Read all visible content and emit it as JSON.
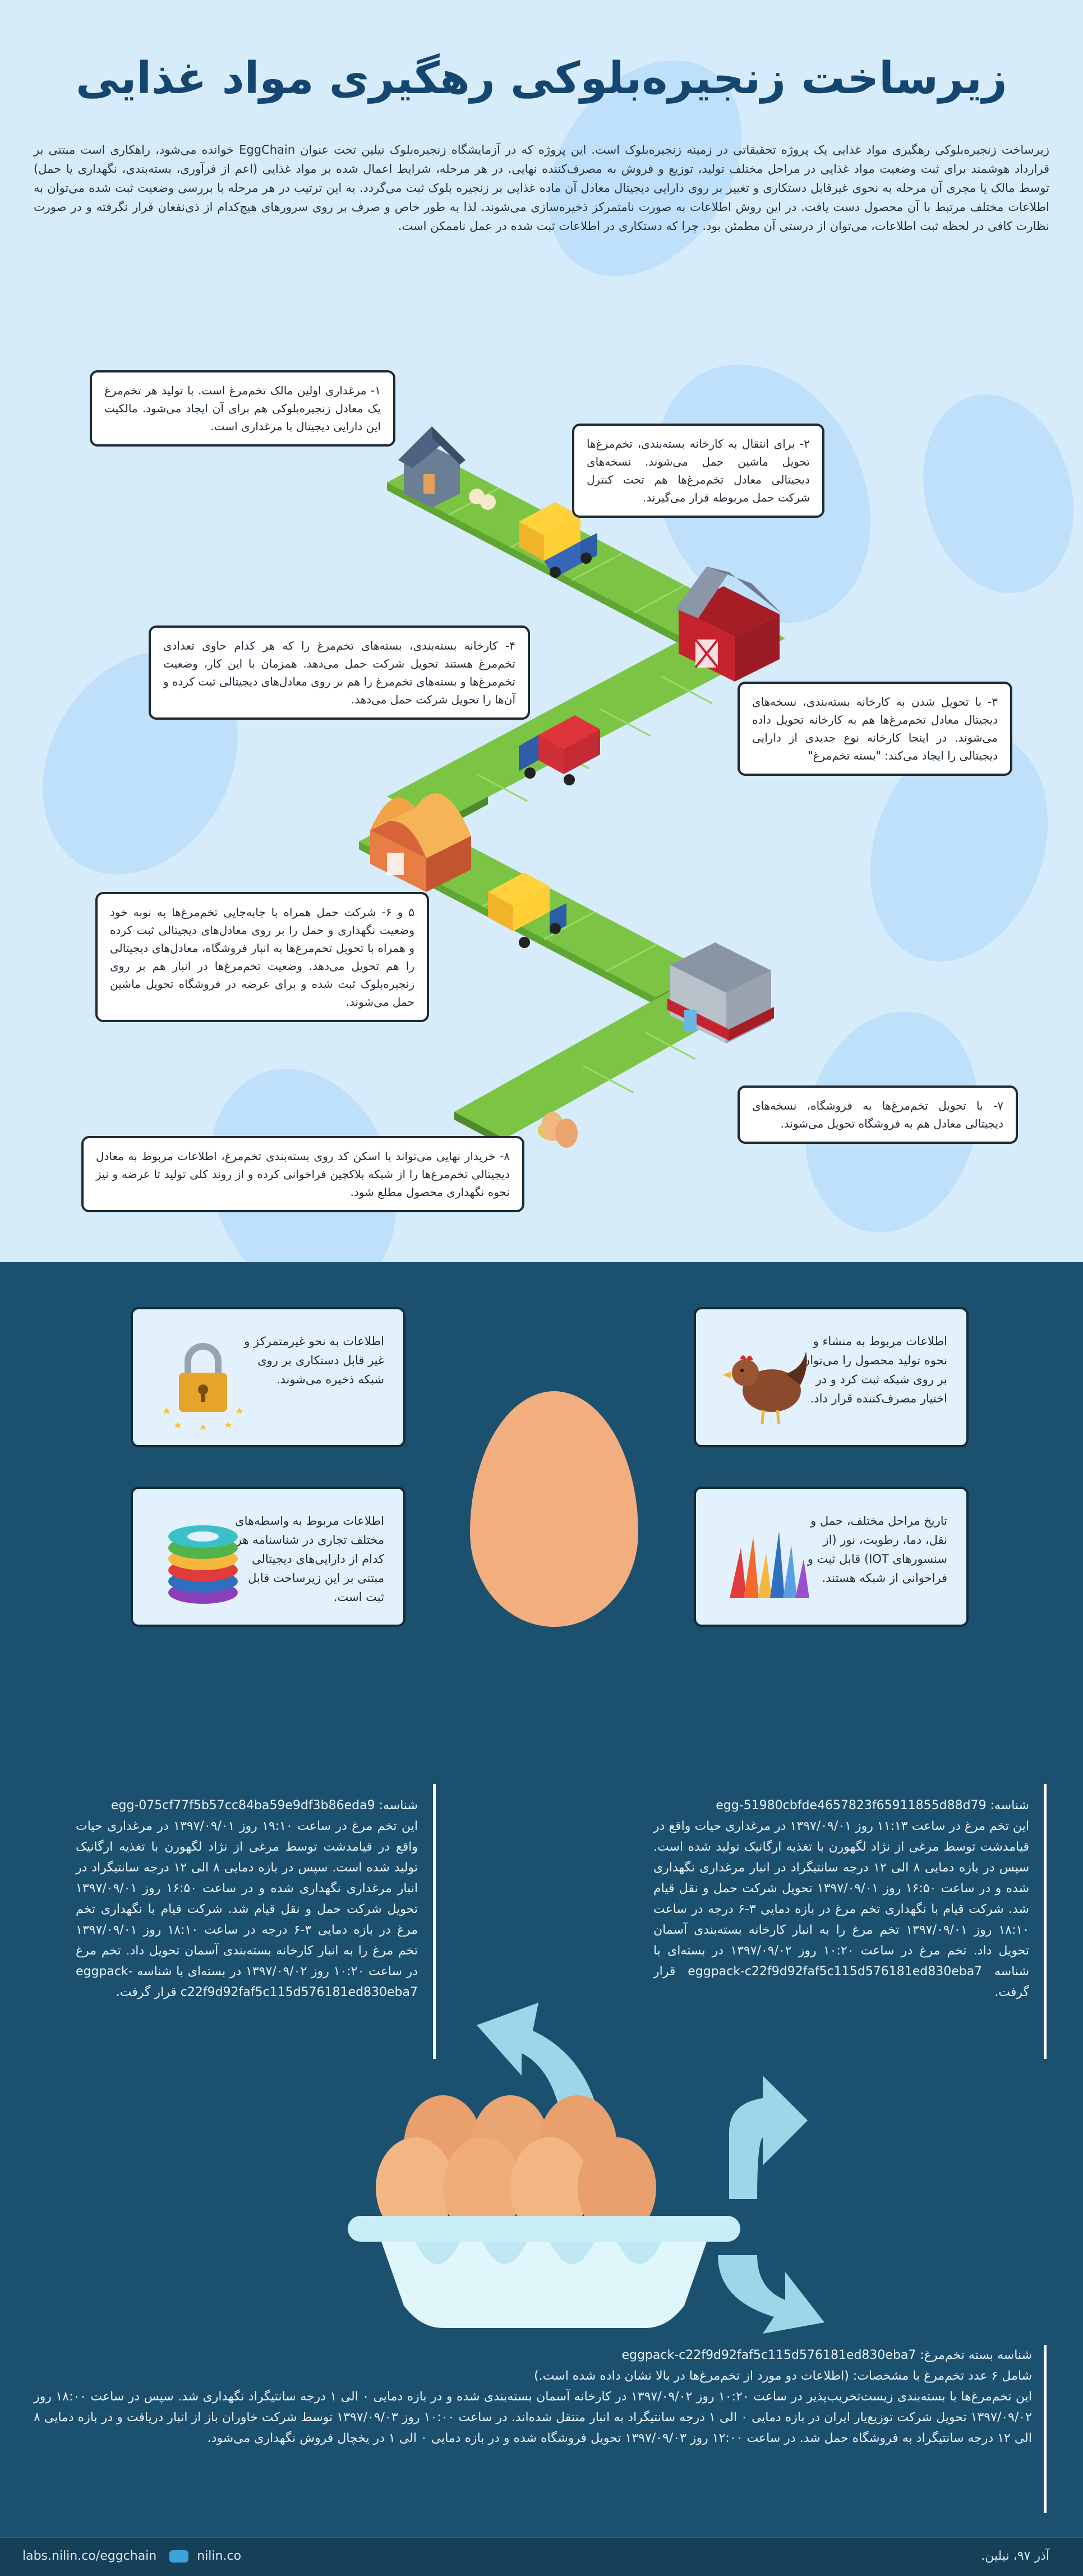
{
  "title": "زیرساخت زنجیره‌بلوکی رهگیری مواد غذایی",
  "intro": "زیرساخت زنجیره‌بلوکی رهگیری مواد غذایی یک پروژه تحقیقاتی در زمینه زنجیره‌بلوک است. این پروژه که در آزمایشگاه زنجیره‌بلوک نیلین تحت عنوان EggChain خوانده می‌شود، راهکاری است مبتنی بر قرارداد هوشمند برای ثبت وضعیت مواد غذایی در مراحل مختلف تولید، توزیع و فروش به مصرف‌کننده نهایی. در هر مرحله، شرایط اعمال شده بر مواد غذایی (اعم از فرآوری، بسته‌بندی، نگهداری یا حمل) توسط مالک یا مجری آن مرحله به نحوی غیرقابل دستکاری و تغییر بر روی دارایی دیجیتال معادل آن ماده غذایی بر زنجیره بلوک ثبت می‌گردد. به این ترتیب در هر مرحله با بررسی وضعیت ثبت شده می‌توان به اطلاعات مختلف مرتبط با آن محصول دست یافت. در این روش اطلاعات به صورت نامتمرکز ذخیره‌سازی می‌شوند. لذا به طور خاص و صرف بر روی سرورهای هیچ‌کدام از ذی‌نفعان قرار نگرفته و در صورت نظارت کافی در لحظه ثبت اطلاعات، می‌توان از درستی آن مطمئن بود. چرا که دستکاری در اطلاعات ثبت شده در عمل ناممکن است.",
  "steps": [
    {
      "id": "s1",
      "text": "۱- مرغداری اولین مالک تخم‌مرغ است. با تولید هر تخم‌مرغ یک معادل زنجیره‌بلوکی هم برای آن ایجاد می‌شود. مالکیت این دارایی دیجیتال با مرغداری است."
    },
    {
      "id": "s2",
      "text": "۲- برای انتقال به کارخانه بسته‌بندی، تخم‌مرغ‌ها تحویل ماشین حمل می‌شوند. نسخه‌های دیجیتالی معادل تخم‌مرغ‌ها هم تحت کنترل شرکت حمل مربوطه قرار می‌گیرند."
    },
    {
      "id": "s3",
      "text": "۳- با تحویل شدن به کارخانه بسته‌بندی، نسخه‌های دیجیتال معادل تخم‌مرغ‌ها هم به کارخانه تحویل داده می‌شوند. در اینجا کارخانه نوع جدیدی از دارایی دیجیتالی را ایجاد می‌کند: \"بسته تخم‌مرغ\""
    },
    {
      "id": "s4",
      "text": "۴- کارخانه بسته‌بندی، بسته‌های تخم‌مرغ را که هر کدام حاوی تعدادی تخم‌مرغ هستند تحویل شرکت حمل می‌دهد. همزمان با این کار، وضعیت تخم‌مرغ‌ها و بسته‌های تخم‌مرغ را هم بر روی معادل‌های دیجیتالی ثبت کرده و آن‌ها را تحویل شرکت حمل می‌دهد."
    },
    {
      "id": "s5",
      "text": "۵ و ۶- شرکت حمل همراه با جابه‌جایی تخم‌مرغ‌ها به نوبه خود وضعیت نگهداری و حمل را بر روی معادل‌های دیجیتالی ثبت کرده و همراه با تحویل تخم‌مرغ‌ها به انبار فروشگاه، معادل‌های دیجیتالی را هم تحویل می‌دهد. وضعیت تخم‌مرغ‌ها در انبار هم بر روی زنجیره‌بلوک ثبت شده و برای عرضه در فروشگاه تحویل ماشین حمل می‌شوند."
    },
    {
      "id": "s7",
      "text": "۷- با تحویل تخم‌مرغ‌ها به فروشگاه، نسخه‌های دیجیتالی معادل هم به فروشگاه تحویل می‌شوند."
    },
    {
      "id": "s8",
      "text": "۸- خریدار نهایی می‌تواند با اسکن کد روی بسته‌بندی تخم‌مرغ، اطلاعات مربوط به معادل دیجیتالی تخم‌مرغ‌ها را از شبکه بلاکچین فراخوانی کرده و از روند کلی تولید تا عرضه و نیز نحوه نگهداری محصول مطلع شود."
    }
  ],
  "facts": [
    {
      "id": "f1",
      "icon": "hen-icon",
      "text": "اطلاعات مربوط به منشاء و نحوه تولید محصول را می‌توان بر روی شبکه ثبت کرد و در اختیار مصرف‌کننده قرار داد."
    },
    {
      "id": "f2",
      "icon": "padlock-icon",
      "text": "اطلاعات به نحو غیرمتمرکز و غیر قابل دستکاری بر روی شبکه ذخیره می‌شوند."
    },
    {
      "id": "f3",
      "icon": "sensor-chart-icon",
      "text": "تاریخ مراحل مختلف، حمل و نقل، دما، رطوبت، نور (از سنسورهای IOT) قابل ثبت و فراخوانی از شبکه هستند."
    },
    {
      "id": "f4",
      "icon": "stacked-rings-icon",
      "text": "اطلاعات مربوط به واسطه‌های مختلف تجاری در شناسنامه هر کدام از دارایی‌های دیجیتالی مبتنی بر این زیرساخت قابل ثبت است."
    }
  ],
  "egg_left": {
    "id_line": "شناسه: egg-075cf77f5b57cc84ba59e9df3b86eda9",
    "text": "این تخم مرغ در ساعت ۱۹:۱۰ روز ۱۳۹۷/۰۹/۰۱ در مرغداری حیات واقع در قیامدشت توسط مرغی از نژاد لگهورن با تغذیه ارگانیک تولید شده است. سپس در بازه دمایی ۸ الی ۱۲ درجه سانتیگراد در انبار مرغداری نگهداری شده و در ساعت ۱۶:۵۰ روز ۱۳۹۷/۰۹/۰۱ تحویل شرکت حمل و نقل قیام شد. شرکت قیام با نگهداری تخم مرغ در بازه دمایی ۳-۶ درجه در ساعت ۱۸:۱۰ روز ۱۳۹۷/۰۹/۰۱ تخم مرغ را به انبار کارخانه بسته‌بندی آسمان تحویل داد. تخم مرغ در ساعت ۱۰:۲۰ روز ۱۳۹۷/۰۹/۰۲ در بسته‌ای با شناسه eggpack-c22f9d92faf5c115d576181ed830eba7 قرار گرفت."
  },
  "egg_right": {
    "id_line": "شناسه: egg-51980cbfde4657823f65911855d88d79",
    "text": "این تخم مرغ در ساعت ۱۱:۱۳ روز ۱۳۹۷/۰۹/۰۱ در مرغداری حیات واقع در قیامدشت توسط مرغی از نژاد لگهورن با تغذیه ارگانیک تولید شده است. سپس در بازه دمایی ۸ الی ۱۲ درجه سانتیگراد در انبار مرغداری نگهداری شده و در ساعت ۱۶:۵۰ روز ۱۳۹۷/۰۹/۰۱ تحویل شرکت حمل و نقل قیام شد. شرکت قیام با نگهداری تخم مرغ در بازه دمایی ۳-۶ درجه در ساعت ۱۸:۱۰ روز ۱۳۹۷/۰۹/۰۱ تخم مرغ را به انبار کارخانه بسته‌بندی آسمان تحویل داد. تخم مرغ در ساعت ۱۰:۲۰ روز ۱۳۹۷/۰۹/۰۲ در بسته‌ای با شناسه eggpack-c22f9d92faf5c115d576181ed830eba7 قرار گرفت."
  },
  "pack": {
    "id_line": "شناسه بسته تخم‌مرغ: eggpack-c22f9d92faf5c115d576181ed830eba7",
    "spec_line": "شامل ۶ عدد تخم‌مرغ با مشخصات: (اطلاعات دو مورد از تخم‌مرغ‌ها در بالا نشان داده شده است.)",
    "text": "این تخم‌مرغ‌ها با بسته‌بندی زیست‌تخریب‌پذیر در ساعت ۱۰:۲۰ روز ۱۳۹۷/۰۹/۰۲ در کارخانه آسمان بسته‌بندی شده و در بازه دمایی ۰ الی ۱ درجه سانتیگراد نگهداری شد. سپس در ساعت ۱۸:۰۰ روز ۱۳۹۷/۰۹/۰۲ تحویل شرکت توزیع‌یار ایران در بازه دمایی ۰ الی ۱ درجه سانتیگراد به انبار منتقل شده‌اند. در ساعت ۱۰:۰۰ روز ۱۳۹۷/۰۹/۰۳ توسط شرکت خاوران باز از انبار دریافت و در بازه دمایی ۸ الی ۱۲ درجه سانتیگراد به فروشگاه حمل شد. در ساعت ۱۲:۰۰ روز ۱۳۹۷/۰۹/۰۳ تحویل فروشگاه شده و در بازه دمایی ۰ الی ۱ در یخچال فروش نگهداری می‌شود."
  },
  "footer": {
    "date": "آذر ۹۷، نیلین.",
    "brand": "nilin.co",
    "url": "labs.nilin.co/eggchain"
  },
  "colors": {
    "sky": "#d6ecfb",
    "navy": "#1c506f",
    "grass": "#7cc444",
    "egg": "#f2ae7f",
    "arrow": "#9dd6e8"
  }
}
